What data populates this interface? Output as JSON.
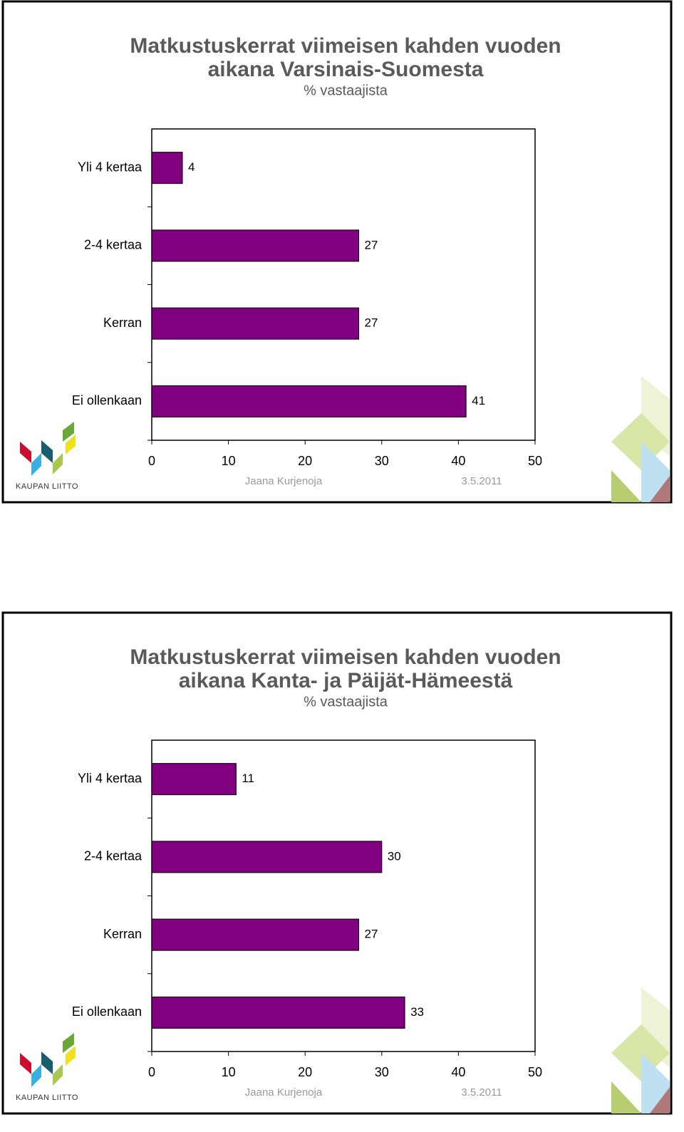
{
  "chart_data": [
    {
      "type": "bar",
      "orientation": "horizontal",
      "title": [
        "Matkustuskerrat viimeisen kahden vuoden",
        "aikana Varsinais-Suomesta"
      ],
      "subtitle": "% vastaajista",
      "categories": [
        "Yli 4 kertaa",
        "2-4 kertaa",
        "Kerran",
        "Ei ollenkaan"
      ],
      "values": [
        4,
        27,
        27,
        41
      ],
      "color": "#800080",
      "xlim": [
        0,
        50
      ],
      "xticks": [
        0,
        10,
        20,
        30,
        40,
        50
      ],
      "author": "Jaana Kurjenoja",
      "date": "3.5.2011",
      "logo_text": "KAUPAN LIITTO"
    },
    {
      "type": "bar",
      "orientation": "horizontal",
      "title": [
        "Matkustuskerrat viimeisen kahden vuoden",
        "aikana Kanta- ja Päijät-Hämeestä"
      ],
      "subtitle": "% vastaajista",
      "categories": [
        "Yli 4 kertaa",
        "2-4 kertaa",
        "Kerran",
        "Ei ollenkaan"
      ],
      "values": [
        11,
        30,
        27,
        33
      ],
      "color": "#800080",
      "xlim": [
        0,
        50
      ],
      "xticks": [
        0,
        10,
        20,
        30,
        40,
        50
      ],
      "author": "Jaana Kurjenoja",
      "date": "3.5.2011",
      "logo_text": "KAUPAN LIITTO"
    }
  ]
}
